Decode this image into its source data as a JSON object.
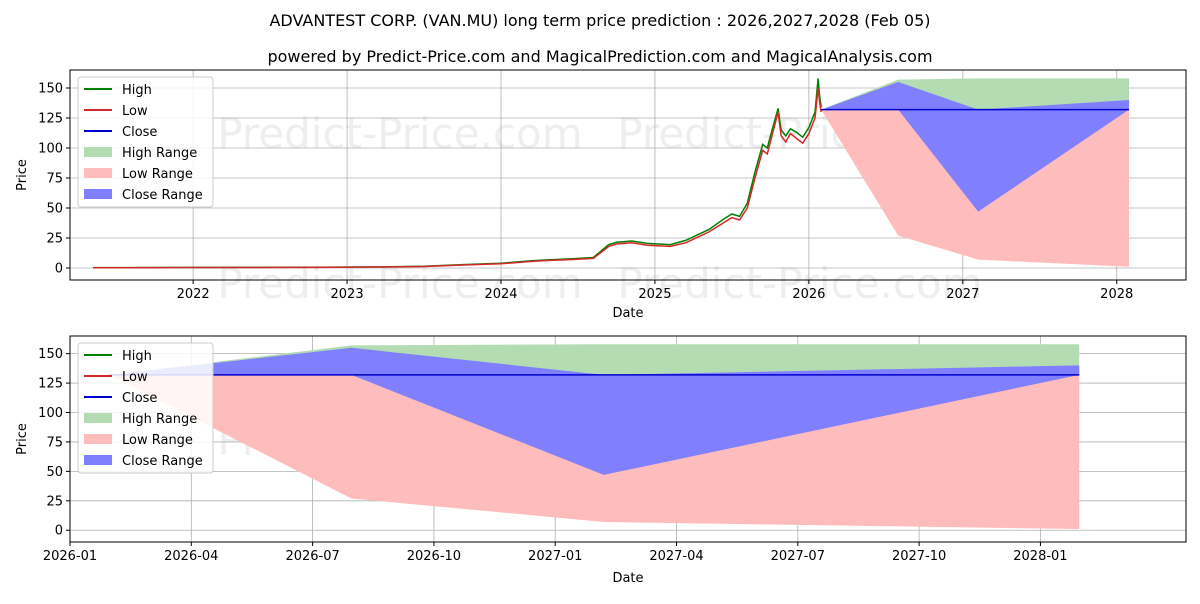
{
  "chart_data": [
    {
      "type": "line",
      "title": "ADVANTEST CORP. (VAN.MU) long term price prediction : 2026,2027,2028 (Feb 05)",
      "subtitle": "powered by Predict-Price.com and MagicalPrediction.com and MagicalAnalysis.com",
      "watermark": [
        "Predict-Price.com",
        "Predict-Price.com",
        "Predict-Price.com",
        "Predict-Price.com"
      ],
      "xlabel": "Date",
      "ylabel": "Price",
      "xlim": [
        2021.2,
        2028.45
      ],
      "ylim": [
        -10,
        165
      ],
      "xticks": [
        2022,
        2023,
        2024,
        2025,
        2026,
        2027,
        2028
      ],
      "xtick_labels": [
        "2022",
        "2023",
        "2024",
        "2025",
        "2026",
        "2027",
        "2028"
      ],
      "yticks": [
        0,
        25,
        50,
        75,
        100,
        125,
        150
      ],
      "ytick_labels": [
        "0",
        "25",
        "50",
        "75",
        "100",
        "125",
        "150"
      ],
      "grid": true,
      "legend": "upper left",
      "legend_labels": [
        "High",
        "Low",
        "Close",
        "High Range",
        "Low Range",
        "Close Range"
      ],
      "history": {
        "x": [
          2021.35,
          2021.8,
          2022.3,
          2022.8,
          2023.2,
          2023.5,
          2023.75,
          2024.0,
          2024.2,
          2024.3,
          2024.45,
          2024.6,
          2024.7,
          2024.75,
          2024.85,
          2024.95,
          2025.1,
          2025.2,
          2025.25,
          2025.35,
          2025.45,
          2025.5,
          2025.55,
          2025.6,
          2025.65,
          2025.7,
          2025.73,
          2025.75,
          2025.8,
          2025.82,
          2025.85,
          2025.88,
          2025.92,
          2025.96,
          2026.0,
          2026.04,
          2026.06,
          2026.07,
          2026.08
        ],
        "low": [
          0.2,
          0.3,
          0.4,
          0.5,
          0.8,
          1.3,
          2.5,
          3.5,
          5.5,
          6.2,
          7.0,
          8.0,
          18.0,
          20.0,
          21.0,
          19.0,
          18.0,
          21.0,
          24.0,
          30.0,
          38.0,
          42.0,
          40.0,
          50.0,
          75.0,
          98.0,
          95.0,
          105.0,
          130.0,
          110.0,
          105.0,
          112.0,
          108.0,
          104.0,
          112.0,
          125.0,
          150.0,
          138.0,
          130.0
        ],
        "high": [
          0.3,
          0.4,
          0.5,
          0.6,
          0.9,
          1.5,
          2.8,
          4.0,
          6.0,
          6.8,
          7.6,
          8.8,
          19.5,
          21.5,
          22.5,
          20.5,
          19.5,
          23.0,
          26.0,
          32.0,
          41.0,
          45.0,
          43.0,
          54.0,
          80.0,
          103.0,
          100.0,
          110.0,
          133.0,
          115.0,
          110.0,
          116.0,
          113.0,
          109.0,
          117.0,
          130.0,
          158.0,
          143.0,
          134.0
        ]
      },
      "forecast": {
        "x": [
          2026.08,
          2026.58,
          2027.1,
          2028.08
        ],
        "close": [
          132,
          132,
          132,
          132
        ],
        "high_range_top": [
          132,
          157,
          158,
          158
        ],
        "high_range_bottom": [
          132,
          132,
          132,
          132
        ],
        "low_range_top": [
          132,
          132,
          132,
          132
        ],
        "low_range_bottom": [
          132,
          27,
          7,
          1
        ],
        "close_range_top": [
          132,
          155,
          132,
          140
        ],
        "close_range_bottom": [
          132,
          132,
          47,
          132
        ]
      }
    },
    {
      "type": "line",
      "xlabel": "Date",
      "ylabel": "Price",
      "xlim": [
        2026.0,
        2028.3
      ],
      "ylim": [
        -10,
        165
      ],
      "xticks": [
        2026.0,
        2026.25,
        2026.5,
        2026.75,
        2027.0,
        2027.25,
        2027.5,
        2027.75,
        2028.0
      ],
      "xtick_labels": [
        "2026-01",
        "2026-04",
        "2026-07",
        "2026-10",
        "2027-01",
        "2027-04",
        "2027-07",
        "2027-10",
        "2028-01"
      ],
      "yticks": [
        0,
        25,
        50,
        75,
        100,
        125,
        150
      ],
      "ytick_labels": [
        "0",
        "25",
        "50",
        "75",
        "100",
        "125",
        "150"
      ],
      "grid": true,
      "legend": "upper left",
      "legend_labels": [
        "High",
        "Low",
        "Close",
        "High Range",
        "Low Range",
        "Close Range"
      ],
      "forecast": {
        "x": [
          2026.08,
          2026.58,
          2027.1,
          2028.08
        ],
        "close": [
          132,
          132,
          132,
          132
        ],
        "high_range_top": [
          132,
          157,
          158,
          158
        ],
        "high_range_bottom": [
          132,
          132,
          132,
          132
        ],
        "low_range_top": [
          132,
          132,
          132,
          132
        ],
        "low_range_bottom": [
          132,
          27,
          7,
          1
        ],
        "close_range_top": [
          132,
          155,
          132,
          140
        ],
        "close_range_bottom": [
          132,
          132,
          47,
          132
        ]
      }
    }
  ],
  "colors": {
    "high": "#008000",
    "low": "#d62728",
    "close": "#0000cc",
    "high_range": "#b3dcb3",
    "low_range": "#ffbcbc",
    "close_range": "#7f7fff",
    "grid": "#b0b0b0"
  }
}
